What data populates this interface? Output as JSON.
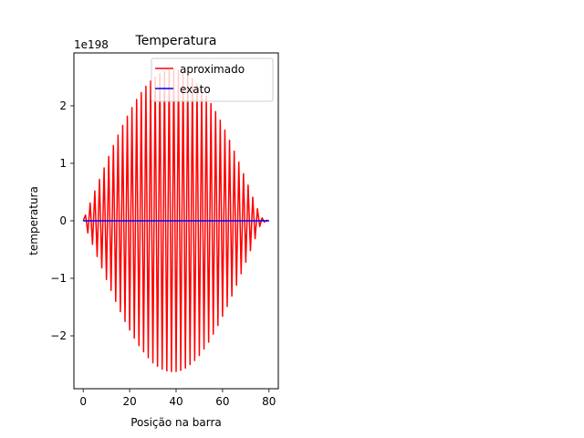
{
  "chart_data": {
    "type": "line",
    "title": "Temperatura",
    "xlabel": "Posição na barra",
    "ylabel": "temperatura",
    "offset_label": "1e198",
    "xlim": [
      -4,
      84
    ],
    "ylim": [
      -2.92,
      2.92
    ],
    "x_ticks": [
      0,
      20,
      40,
      60,
      80
    ],
    "y_ticks": [
      -2,
      -1,
      0,
      1,
      2
    ],
    "x_tick_labels": [
      "0",
      "20",
      "40",
      "60",
      "80"
    ],
    "y_tick_labels": [
      "−2",
      "−1",
      "0",
      "1",
      "2"
    ],
    "grid": false,
    "legend": {
      "position": "top-right"
    },
    "series": [
      {
        "name": "aproximado",
        "color": "#ff0000",
        "x_start": 0,
        "x_step": 1,
        "values": [
          0,
          0.1,
          -0.21,
          0.31,
          -0.41,
          0.52,
          -0.62,
          0.72,
          -0.82,
          0.92,
          -1.02,
          1.12,
          -1.21,
          1.31,
          -1.4,
          1.49,
          -1.58,
          1.66,
          -1.75,
          1.82,
          -1.9,
          1.97,
          -2.04,
          2.11,
          -2.17,
          2.23,
          -2.28,
          2.34,
          -2.38,
          2.43,
          -2.47,
          2.5,
          -2.53,
          2.56,
          -2.58,
          2.6,
          -2.61,
          2.62,
          -2.62,
          2.62,
          -2.62,
          2.61,
          -2.6,
          2.58,
          -2.56,
          2.53,
          -2.5,
          2.47,
          -2.43,
          2.38,
          -2.34,
          2.28,
          -2.23,
          2.17,
          -2.11,
          2.04,
          -1.97,
          1.9,
          -1.82,
          1.75,
          -1.66,
          1.58,
          -1.49,
          1.4,
          -1.31,
          1.21,
          -1.12,
          1.02,
          -0.92,
          0.82,
          -0.72,
          0.62,
          -0.52,
          0.41,
          -0.31,
          0.21,
          -0.1,
          0.05,
          -0.02,
          0.01,
          0
        ]
      },
      {
        "name": "exato",
        "color": "#0000ff",
        "x": [
          0,
          80
        ],
        "values": [
          0,
          0
        ]
      }
    ]
  }
}
